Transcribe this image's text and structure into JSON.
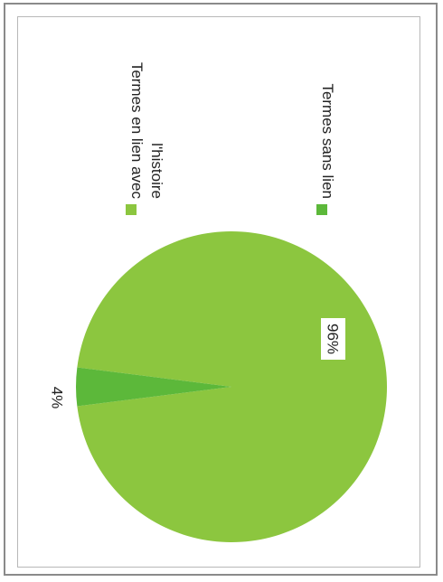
{
  "chart_data": {
    "type": "pie",
    "title": "",
    "categories": [
      "Termes en lien avec l'histoire",
      "Termes sans lien"
    ],
    "values": [
      96,
      4
    ],
    "value_labels": [
      "96%",
      "4%"
    ],
    "legend": {
      "placement": "right",
      "entries": [
        {
          "lines": [
            "Termes en lien avec",
            "l'histoire"
          ],
          "color": "#8cc63f"
        },
        {
          "lines": [
            "Termes sans lien"
          ],
          "color": "#5cb83a"
        }
      ]
    },
    "colors": [
      "#8cc63f",
      "#5cb83a"
    ],
    "orientation": "rotated-90-clockwise"
  }
}
